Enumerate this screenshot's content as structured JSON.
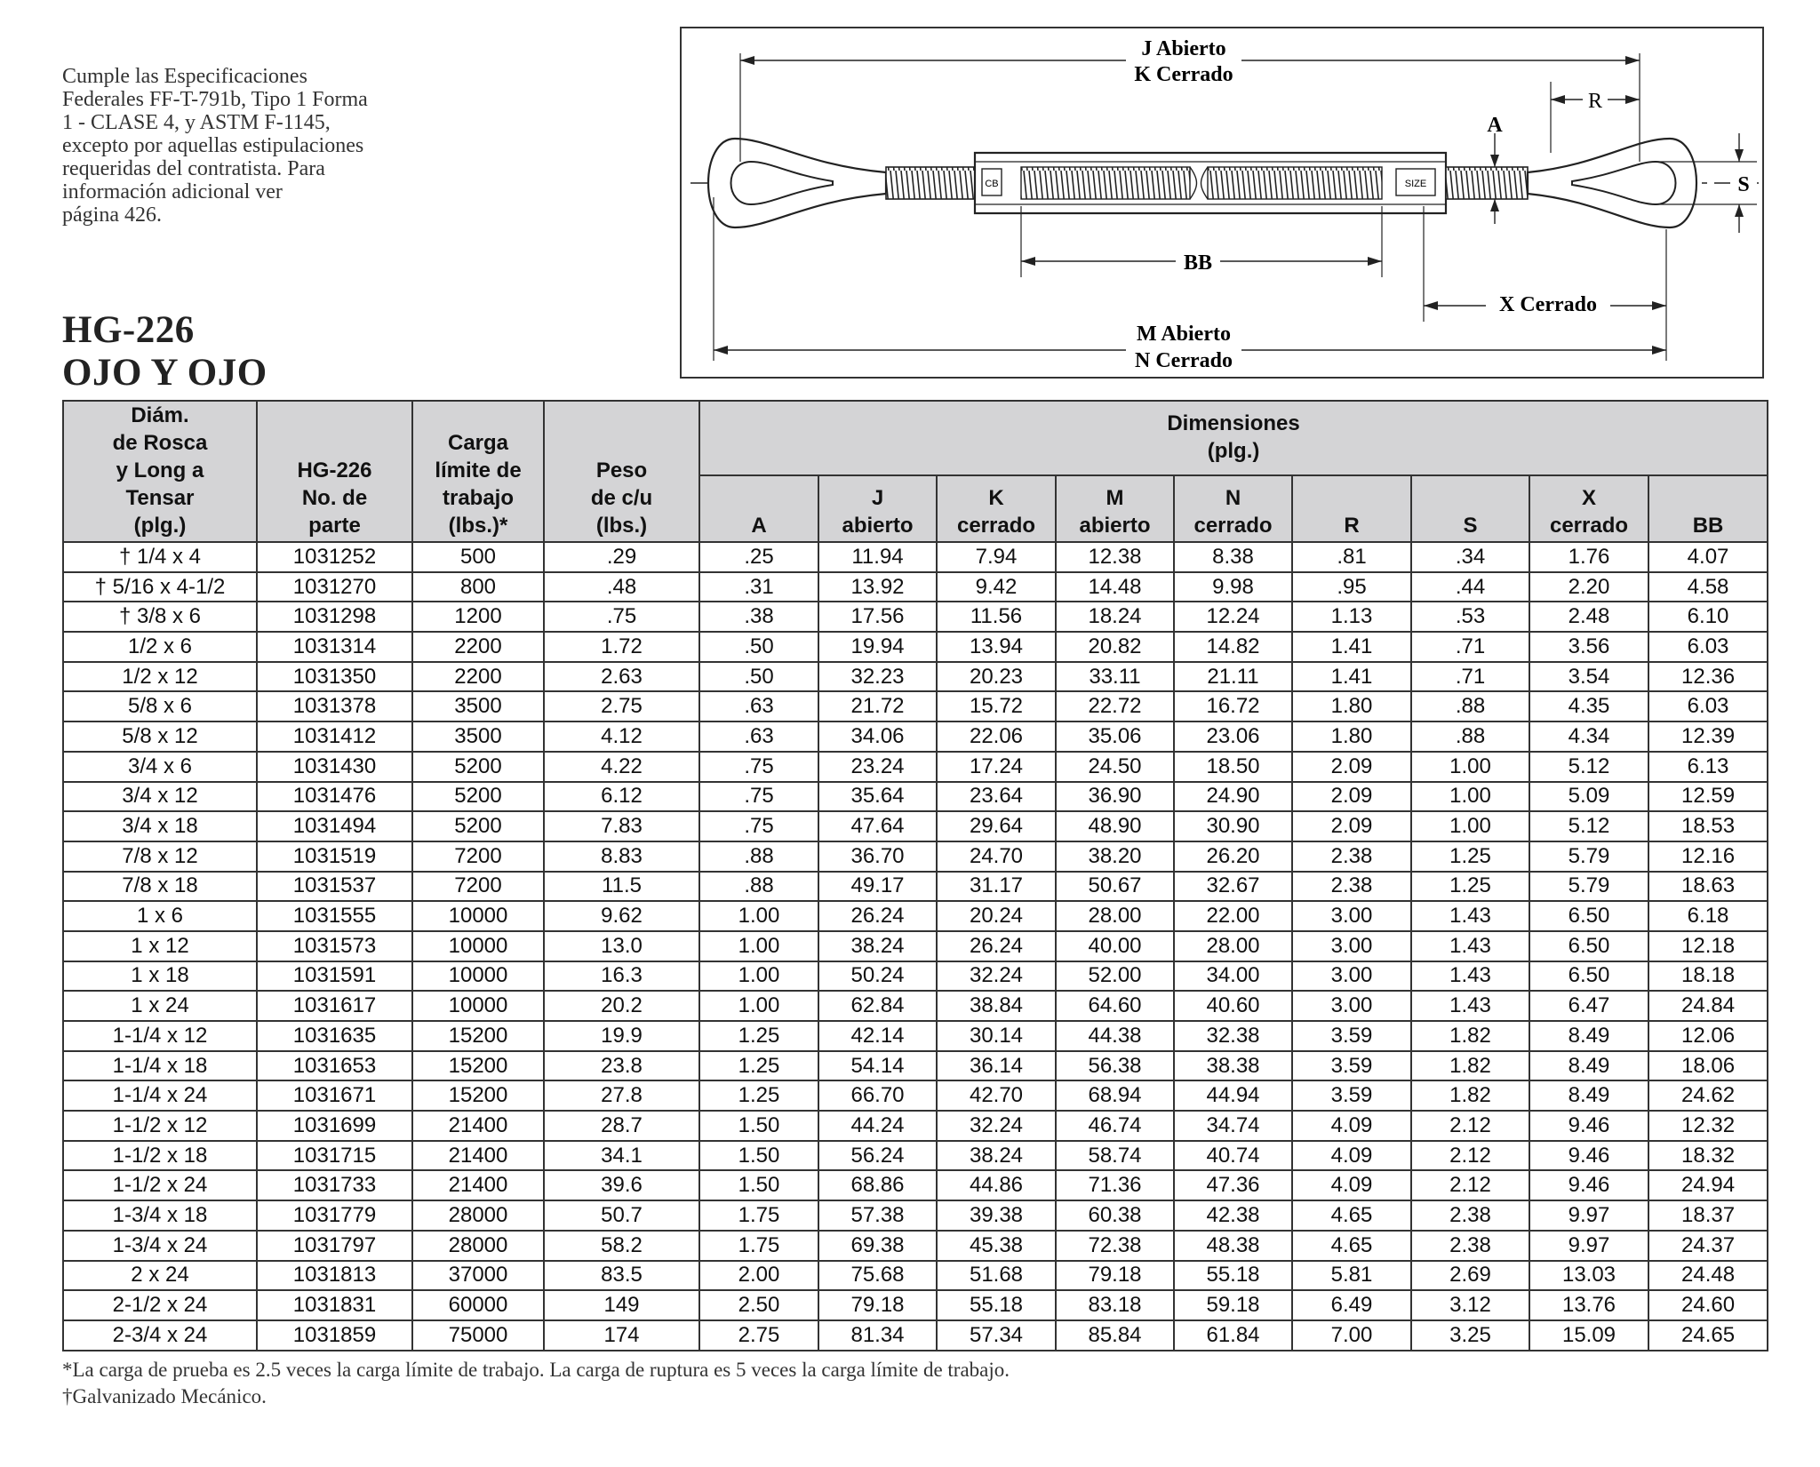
{
  "spec_note": {
    "lines": [
      "Cumple las Especificaciones",
      "Federales FF-T-791b, Tipo 1 Forma",
      "1 - CLASE 4, y ASTM F-1145,",
      "excepto por aquellas estipulaciones",
      "requeridas del contratista.  Para",
      "información adicional ver",
      "página 426."
    ]
  },
  "product": {
    "code": "HG-226",
    "name": "OJO Y OJO"
  },
  "diagram": {
    "labels": {
      "j_abierto": "J Abierto",
      "k_cerrado": "K Cerrado",
      "r": "R",
      "a": "A",
      "s": "S",
      "bb": "BB",
      "x_cerrado": "X  Cerrado",
      "m_abierto": "M Abierto",
      "n_cerrado": "N Cerrado",
      "size_mark": "SIZE",
      "logo_mark": "CB"
    }
  },
  "table": {
    "headers": {
      "diam": [
        "Diám.",
        "de Rosca",
        "y Long a",
        "Tensar",
        "(plg.)"
      ],
      "part": [
        "HG-226",
        "No. de",
        "parte"
      ],
      "carga": [
        "Carga",
        "límite de",
        "trabajo",
        "(lbs.)*"
      ],
      "peso": [
        "Peso",
        "de c/u",
        "(lbs.)"
      ],
      "dimensiones": [
        "Dimensiones",
        "(plg.)"
      ],
      "sub": [
        [
          "A"
        ],
        [
          "J",
          "abierto"
        ],
        [
          "K",
          "cerrado"
        ],
        [
          "M",
          "abierto"
        ],
        [
          "N",
          "cerrado"
        ],
        [
          "R"
        ],
        [
          "S"
        ],
        [
          "X",
          "cerrado"
        ],
        [
          "BB"
        ]
      ]
    },
    "rows": [
      [
        "† 1/4 x 4",
        "1031252",
        "500",
        ".29",
        ".25",
        "11.94",
        "7.94",
        "12.38",
        "8.38",
        ".81",
        ".34",
        "1.76",
        "4.07"
      ],
      [
        "† 5/16 x 4-1/2",
        "1031270",
        "800",
        ".48",
        ".31",
        "13.92",
        "9.42",
        "14.48",
        "9.98",
        ".95",
        ".44",
        "2.20",
        "4.58"
      ],
      [
        "† 3/8 x 6",
        "1031298",
        "1200",
        ".75",
        ".38",
        "17.56",
        "11.56",
        "18.24",
        "12.24",
        "1.13",
        ".53",
        "2.48",
        "6.10"
      ],
      [
        "1/2 x 6",
        "1031314",
        "2200",
        "1.72",
        ".50",
        "19.94",
        "13.94",
        "20.82",
        "14.82",
        "1.41",
        ".71",
        "3.56",
        "6.03"
      ],
      [
        "1/2 x 12",
        "1031350",
        "2200",
        "2.63",
        ".50",
        "32.23",
        "20.23",
        "33.11",
        "21.11",
        "1.41",
        ".71",
        "3.54",
        "12.36"
      ],
      [
        "5/8 x 6",
        "1031378",
        "3500",
        "2.75",
        ".63",
        "21.72",
        "15.72",
        "22.72",
        "16.72",
        "1.80",
        ".88",
        "4.35",
        "6.03"
      ],
      [
        "5/8 x 12",
        "1031412",
        "3500",
        "4.12",
        ".63",
        "34.06",
        "22.06",
        "35.06",
        "23.06",
        "1.80",
        ".88",
        "4.34",
        "12.39"
      ],
      [
        "3/4 x 6",
        "1031430",
        "5200",
        "4.22",
        ".75",
        "23.24",
        "17.24",
        "24.50",
        "18.50",
        "2.09",
        "1.00",
        "5.12",
        "6.13"
      ],
      [
        "3/4 x 12",
        "1031476",
        "5200",
        "6.12",
        ".75",
        "35.64",
        "23.64",
        "36.90",
        "24.90",
        "2.09",
        "1.00",
        "5.09",
        "12.59"
      ],
      [
        "3/4 x 18",
        "1031494",
        "5200",
        "7.83",
        ".75",
        "47.64",
        "29.64",
        "48.90",
        "30.90",
        "2.09",
        "1.00",
        "5.12",
        "18.53"
      ],
      [
        "7/8 x 12",
        "1031519",
        "7200",
        "8.83",
        ".88",
        "36.70",
        "24.70",
        "38.20",
        "26.20",
        "2.38",
        "1.25",
        "5.79",
        "12.16"
      ],
      [
        "7/8 x 18",
        "1031537",
        "7200",
        "11.5",
        ".88",
        "49.17",
        "31.17",
        "50.67",
        "32.67",
        "2.38",
        "1.25",
        "5.79",
        "18.63"
      ],
      [
        "1 x 6",
        "1031555",
        "10000",
        "9.62",
        "1.00",
        "26.24",
        "20.24",
        "28.00",
        "22.00",
        "3.00",
        "1.43",
        "6.50",
        "6.18"
      ],
      [
        "1 x 12",
        "1031573",
        "10000",
        "13.0",
        "1.00",
        "38.24",
        "26.24",
        "40.00",
        "28.00",
        "3.00",
        "1.43",
        "6.50",
        "12.18"
      ],
      [
        "1 x 18",
        "1031591",
        "10000",
        "16.3",
        "1.00",
        "50.24",
        "32.24",
        "52.00",
        "34.00",
        "3.00",
        "1.43",
        "6.50",
        "18.18"
      ],
      [
        "1 x 24",
        "1031617",
        "10000",
        "20.2",
        "1.00",
        "62.84",
        "38.84",
        "64.60",
        "40.60",
        "3.00",
        "1.43",
        "6.47",
        "24.84"
      ],
      [
        "1-1/4 x 12",
        "1031635",
        "15200",
        "19.9",
        "1.25",
        "42.14",
        "30.14",
        "44.38",
        "32.38",
        "3.59",
        "1.82",
        "8.49",
        "12.06"
      ],
      [
        "1-1/4 x 18",
        "1031653",
        "15200",
        "23.8",
        "1.25",
        "54.14",
        "36.14",
        "56.38",
        "38.38",
        "3.59",
        "1.82",
        "8.49",
        "18.06"
      ],
      [
        "1-1/4 x 24",
        "1031671",
        "15200",
        "27.8",
        "1.25",
        "66.70",
        "42.70",
        "68.94",
        "44.94",
        "3.59",
        "1.82",
        "8.49",
        "24.62"
      ],
      [
        "1-1/2 x 12",
        "1031699",
        "21400",
        "28.7",
        "1.50",
        "44.24",
        "32.24",
        "46.74",
        "34.74",
        "4.09",
        "2.12",
        "9.46",
        "12.32"
      ],
      [
        "1-1/2 x 18",
        "1031715",
        "21400",
        "34.1",
        "1.50",
        "56.24",
        "38.24",
        "58.74",
        "40.74",
        "4.09",
        "2.12",
        "9.46",
        "18.32"
      ],
      [
        "1-1/2 x 24",
        "1031733",
        "21400",
        "39.6",
        "1.50",
        "68.86",
        "44.86",
        "71.36",
        "47.36",
        "4.09",
        "2.12",
        "9.46",
        "24.94"
      ],
      [
        "1-3/4 x 18",
        "1031779",
        "28000",
        "50.7",
        "1.75",
        "57.38",
        "39.38",
        "60.38",
        "42.38",
        "4.65",
        "2.38",
        "9.97",
        "18.37"
      ],
      [
        "1-3/4 x 24",
        "1031797",
        "28000",
        "58.2",
        "1.75",
        "69.38",
        "45.38",
        "72.38",
        "48.38",
        "4.65",
        "2.38",
        "9.97",
        "24.37"
      ],
      [
        "2 x 24",
        "1031813",
        "37000",
        "83.5",
        "2.00",
        "75.68",
        "51.68",
        "79.18",
        "55.18",
        "5.81",
        "2.69",
        "13.03",
        "24.48"
      ],
      [
        "2-1/2 x 24",
        "1031831",
        "60000",
        "149",
        "2.50",
        "79.18",
        "55.18",
        "83.18",
        "59.18",
        "6.49",
        "3.12",
        "13.76",
        "24.60"
      ],
      [
        "2-3/4 x 24",
        "1031859",
        "75000",
        "174",
        "2.75",
        "81.34",
        "57.34",
        "85.84",
        "61.84",
        "7.00",
        "3.25",
        "15.09",
        "24.65"
      ]
    ]
  },
  "footnotes": [
    "*La carga de prueba es 2.5 veces la carga límite de trabajo. La carga de ruptura es 5 veces la carga límite de trabajo.",
    "†Galvanizado Mecánico."
  ]
}
